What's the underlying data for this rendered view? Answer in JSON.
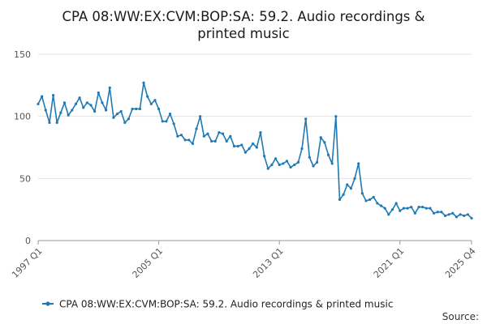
{
  "chart_data": {
    "type": "line",
    "title_lines": [
      "CPA 08:WW:EX:CVM:BOP:SA: 59.2. Audio recordings &",
      "printed music"
    ],
    "ylim": [
      0,
      150
    ],
    "y_ticks": [
      0,
      50,
      100,
      150
    ],
    "x_tick_labels": [
      "1997 Q1",
      "2005 Q1",
      "2013 Q1",
      "2021 Q1",
      "2025 Q4"
    ],
    "x_tick_indices": [
      0,
      32,
      64,
      96,
      115
    ],
    "grid": "horizontal",
    "legend_position": "bottom",
    "series_color": "#1f7ab4",
    "source_label": "Source:",
    "series": [
      {
        "name": "CPA 08:WW:EX:CVM:BOP:SA: 59.2. Audio recordings & printed music",
        "x": [
          "1997 Q1",
          "1997 Q2",
          "1997 Q3",
          "1997 Q4",
          "1998 Q1",
          "1998 Q2",
          "1998 Q3",
          "1998 Q4",
          "1999 Q1",
          "1999 Q2",
          "1999 Q3",
          "1999 Q4",
          "2000 Q1",
          "2000 Q2",
          "2000 Q3",
          "2000 Q4",
          "2001 Q1",
          "2001 Q2",
          "2001 Q3",
          "2001 Q4",
          "2002 Q1",
          "2002 Q2",
          "2002 Q3",
          "2002 Q4",
          "2003 Q1",
          "2003 Q2",
          "2003 Q3",
          "2003 Q4",
          "2004 Q1",
          "2004 Q2",
          "2004 Q3",
          "2004 Q4",
          "2005 Q1",
          "2005 Q2",
          "2005 Q3",
          "2005 Q4",
          "2006 Q1",
          "2006 Q2",
          "2006 Q3",
          "2006 Q4",
          "2007 Q1",
          "2007 Q2",
          "2007 Q3",
          "2007 Q4",
          "2008 Q1",
          "2008 Q2",
          "2008 Q3",
          "2008 Q4",
          "2009 Q1",
          "2009 Q2",
          "2009 Q3",
          "2009 Q4",
          "2010 Q1",
          "2010 Q2",
          "2010 Q3",
          "2010 Q4",
          "2011 Q1",
          "2011 Q2",
          "2011 Q3",
          "2011 Q4",
          "2012 Q1",
          "2012 Q2",
          "2012 Q3",
          "2012 Q4",
          "2013 Q1",
          "2013 Q2",
          "2013 Q3",
          "2013 Q4",
          "2014 Q1",
          "2014 Q2",
          "2014 Q3",
          "2014 Q4",
          "2015 Q1",
          "2015 Q2",
          "2015 Q3",
          "2015 Q4",
          "2016 Q1",
          "2016 Q2",
          "2016 Q3",
          "2016 Q4",
          "2017 Q1",
          "2017 Q2",
          "2017 Q3",
          "2017 Q4",
          "2018 Q1",
          "2018 Q2",
          "2018 Q3",
          "2018 Q4",
          "2019 Q1",
          "2019 Q2",
          "2019 Q3",
          "2019 Q4",
          "2020 Q1",
          "2020 Q2",
          "2020 Q3",
          "2020 Q4",
          "2021 Q1",
          "2021 Q2",
          "2021 Q3",
          "2021 Q4",
          "2022 Q1",
          "2022 Q2",
          "2022 Q3",
          "2022 Q4",
          "2023 Q1",
          "2023 Q2",
          "2023 Q3",
          "2023 Q4",
          "2024 Q1",
          "2024 Q2",
          "2024 Q3",
          "2024 Q4",
          "2025 Q1",
          "2025 Q2",
          "2025 Q3",
          "2025 Q4"
        ],
        "values": [
          110,
          116,
          105,
          95,
          117,
          95,
          103,
          111,
          101,
          105,
          110,
          115,
          107,
          111,
          109,
          104,
          119,
          111,
          105,
          123,
          99,
          102,
          104,
          95,
          98,
          106,
          106,
          106,
          127,
          116,
          110,
          113,
          106,
          96,
          96,
          102,
          94,
          84,
          85,
          81,
          81,
          78,
          90,
          100,
          84,
          86,
          80,
          80,
          87,
          86,
          80,
          84,
          76,
          76,
          77,
          71,
          74,
          78,
          75,
          87,
          68,
          58,
          61,
          66,
          61,
          62,
          64,
          59,
          61,
          63,
          74,
          98,
          67,
          60,
          63,
          83,
          79,
          69,
          62,
          100,
          33,
          37,
          45,
          42,
          50,
          62,
          38,
          32,
          33,
          35,
          30,
          28,
          26,
          21,
          25,
          30,
          24,
          26,
          26,
          27,
          22,
          27,
          27,
          26,
          26,
          22,
          23,
          23,
          20,
          21,
          22,
          19,
          21,
          20,
          21,
          18
        ]
      }
    ]
  }
}
